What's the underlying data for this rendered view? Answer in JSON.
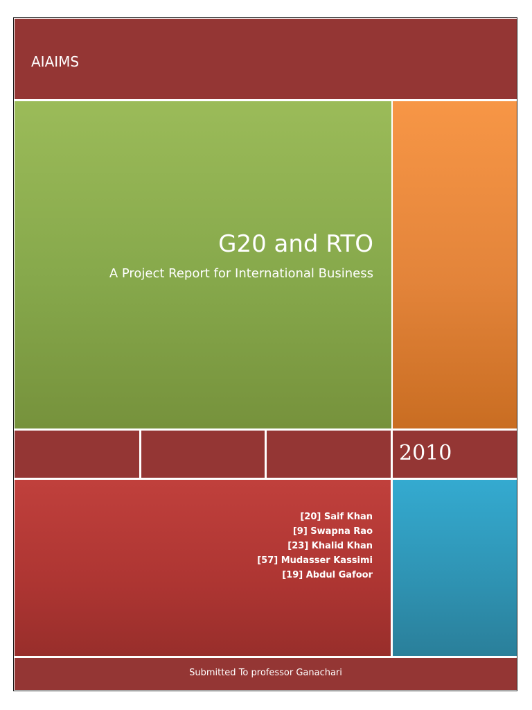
{
  "header": {
    "org_name": "AIAIMS"
  },
  "title_block": {
    "title": "G20 and RTO",
    "subtitle": "A Project Report for International Business"
  },
  "year_block": {
    "year": "2010"
  },
  "members": [
    "[20] Saif Khan",
    "[9] Swapna Rao",
    "[23] Khalid Khan",
    "[57] Mudasser Kassimi",
    "[19] Abdul Gafoor"
  ],
  "footer": {
    "submitted_to": "Submitted To professor Ganachari"
  },
  "colors": {
    "maroon": "#943634",
    "green": "#9bbb59",
    "orange": "#f79646",
    "red": "#c0403c",
    "blue": "#34aad0"
  }
}
